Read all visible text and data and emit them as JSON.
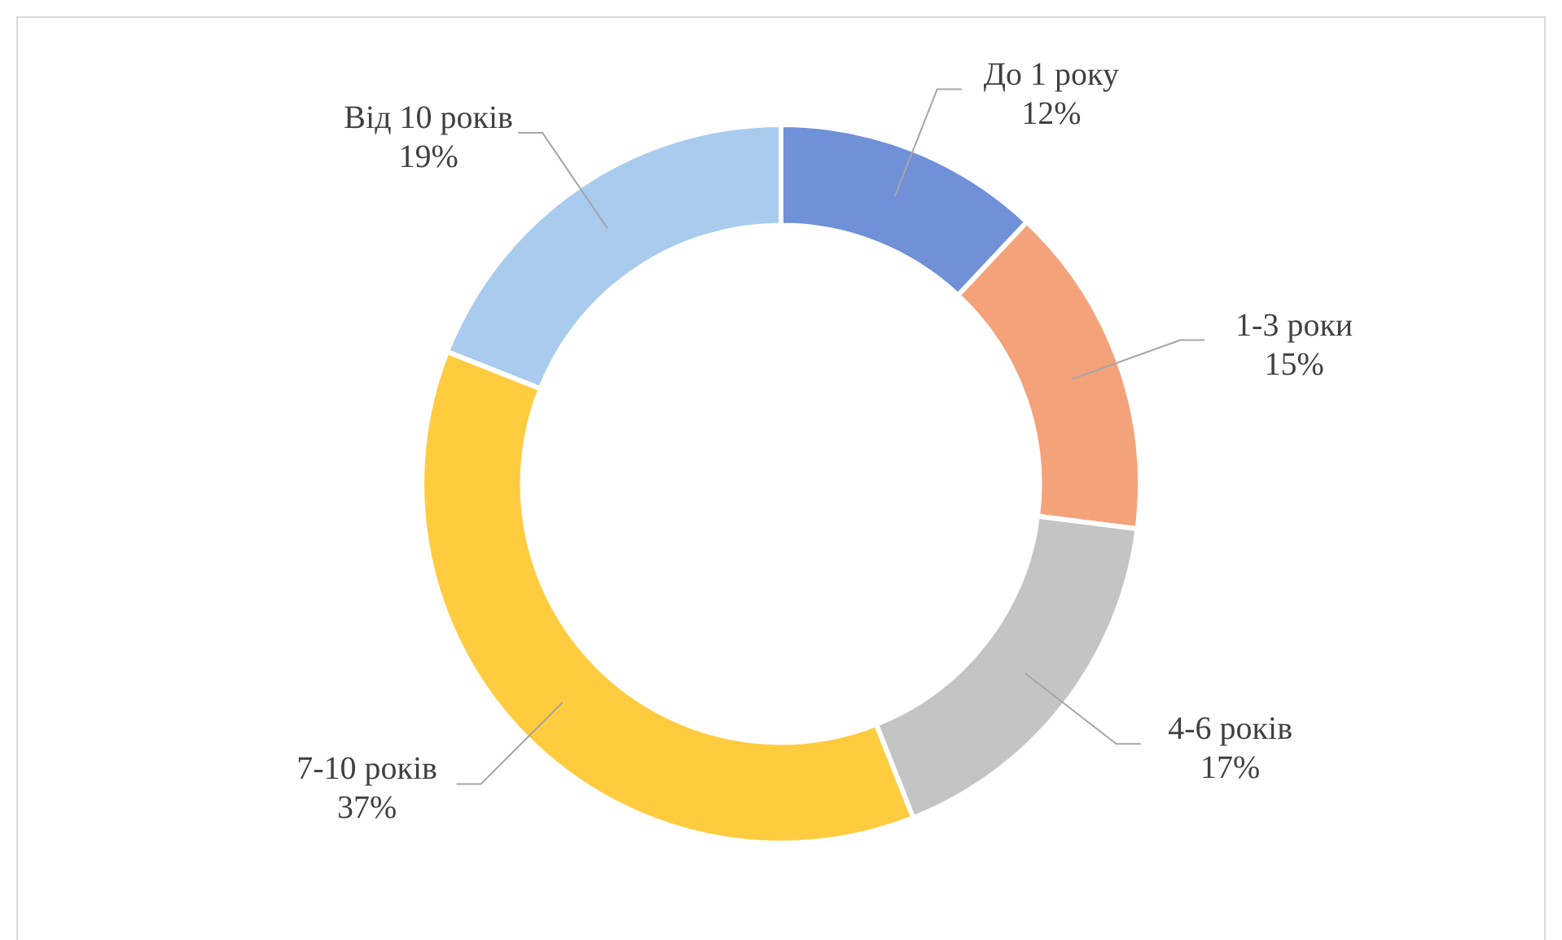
{
  "chart_data": {
    "type": "donut",
    "categories": [
      "До 1 року",
      "1-3 роки",
      "4-6 років",
      "7-10 років",
      "Від 10 років"
    ],
    "values": [
      12,
      15,
      17,
      37,
      19
    ],
    "value_labels": [
      "12%",
      "15%",
      "17%",
      "37%",
      "19%"
    ],
    "colors": [
      "#7090d8",
      "#f4a27a",
      "#c4c4c4",
      "#ffcc40",
      "#a8cbee"
    ],
    "legend": false
  }
}
